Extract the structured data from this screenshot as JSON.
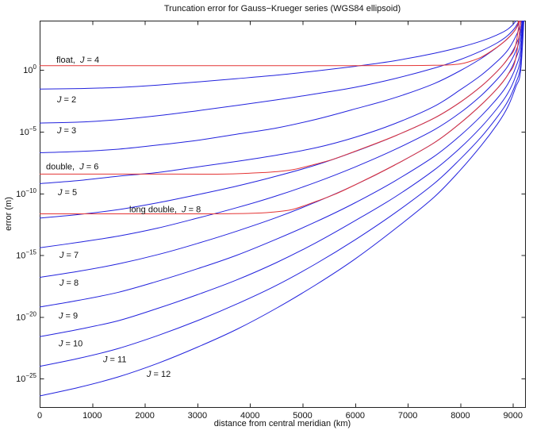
{
  "title": "Truncation error for Gauss−Krueger series (WGS84 ellipsoid)",
  "xlabel": "distance from central meridian (km)",
  "ylabel": "error (m)",
  "colors": {
    "blue_series": "#2222dd",
    "red_series": "#e43535",
    "axis": "#222222",
    "text": "#111111",
    "background": "#ffffff"
  },
  "axis": {
    "xmin": 0,
    "xmax": 9230,
    "x_ticks": [
      0,
      1000,
      2000,
      3000,
      4000,
      5000,
      6000,
      7000,
      8000,
      9000
    ],
    "y_tick_exponents": [
      0,
      -5,
      -10,
      -15,
      -20,
      -25
    ],
    "log_ymin": -27.3,
    "log_ymax": 4.0,
    "grid": false,
    "legend": false
  },
  "chart_data": {
    "type": "line",
    "x_km": [
      0,
      750,
      1500,
      2250,
      3000,
      3750,
      4500,
      5250,
      6000,
      6750,
      7500,
      8000,
      8400,
      8700,
      8900,
      9050,
      9150,
      9230
    ],
    "series": [
      {
        "name": "J = 2",
        "color": "blue",
        "log10_error": [
          -1.54,
          -1.5,
          -1.41,
          -1.22,
          -0.97,
          -0.7,
          -0.42,
          -0.08,
          0.3,
          0.75,
          1.35,
          1.85,
          2.35,
          2.85,
          3.3,
          3.95,
          4.8,
          6.0
        ]
      },
      {
        "name": "J = 3",
        "color": "blue",
        "log10_error": [
          -4.3,
          -4.22,
          -4.02,
          -3.7,
          -3.3,
          -2.87,
          -2.42,
          -1.93,
          -1.4,
          -0.7,
          0.15,
          0.85,
          1.55,
          2.2,
          2.8,
          3.5,
          4.4,
          6.0
        ]
      },
      {
        "name": "J = 4",
        "color": "blue",
        "log10_error": [
          -6.7,
          -6.6,
          -6.41,
          -6.08,
          -5.7,
          -5.2,
          -4.7,
          -4.0,
          -3.15,
          -2.25,
          -1.1,
          -0.05,
          0.95,
          1.85,
          2.55,
          3.3,
          4.2,
          6.0
        ]
      },
      {
        "name": "J = 5",
        "color": "blue",
        "log10_error": [
          -9.2,
          -8.95,
          -8.6,
          -8.3,
          -7.85,
          -7.4,
          -6.9,
          -6.3,
          -5.45,
          -4.35,
          -2.95,
          -1.6,
          -0.4,
          0.7,
          1.6,
          2.7,
          3.8,
          6.0
        ]
      },
      {
        "name": "J = 6",
        "color": "blue",
        "log10_error": [
          -12.0,
          -11.7,
          -11.3,
          -10.75,
          -10.1,
          -9.4,
          -8.6,
          -7.7,
          -6.6,
          -5.35,
          -3.9,
          -2.6,
          -1.3,
          -0.1,
          0.9,
          2.0,
          3.3,
          6.0
        ]
      },
      {
        "name": "J = 7",
        "color": "blue",
        "log10_error": [
          -14.4,
          -13.95,
          -13.45,
          -12.8,
          -12.0,
          -11.15,
          -10.2,
          -9.1,
          -7.85,
          -6.45,
          -4.85,
          -3.45,
          -2.05,
          -0.75,
          0.3,
          1.5,
          2.9,
          6.0
        ]
      },
      {
        "name": "J = 8",
        "color": "blue",
        "log10_error": [
          -16.8,
          -16.3,
          -15.7,
          -14.95,
          -14.05,
          -13.05,
          -11.95,
          -10.7,
          -9.3,
          -7.7,
          -5.9,
          -4.3,
          -2.8,
          -1.5,
          -0.4,
          0.9,
          2.4,
          6.0
        ]
      },
      {
        "name": "J = 9",
        "color": "blue",
        "log10_error": [
          -19.2,
          -18.65,
          -18.0,
          -17.1,
          -16.1,
          -15.0,
          -13.7,
          -12.3,
          -10.75,
          -9.0,
          -7.0,
          -5.3,
          -3.7,
          -2.3,
          -1.15,
          0.2,
          1.8,
          6.0
        ]
      },
      {
        "name": "J = 10",
        "color": "blue",
        "log10_error": [
          -21.6,
          -21.0,
          -20.3,
          -19.3,
          -18.2,
          -17.0,
          -15.6,
          -14.0,
          -12.2,
          -10.3,
          -8.1,
          -6.3,
          -4.6,
          -3.1,
          -1.9,
          -0.5,
          1.2,
          6.0
        ]
      },
      {
        "name": "J = 11",
        "color": "blue",
        "log10_error": [
          -24.0,
          -23.35,
          -22.55,
          -21.5,
          -20.3,
          -18.95,
          -17.45,
          -15.7,
          -13.75,
          -11.6,
          -9.2,
          -7.2,
          -5.4,
          -3.8,
          -2.55,
          -1.1,
          0.6,
          6.0
        ]
      },
      {
        "name": "J = 12",
        "color": "blue",
        "log10_error": [
          -26.4,
          -25.7,
          -24.85,
          -23.75,
          -22.45,
          -21.0,
          -19.3,
          -17.4,
          -15.3,
          -12.9,
          -10.3,
          -8.1,
          -6.1,
          -4.4,
          -3.0,
          -1.4,
          0.1,
          6.0
        ]
      },
      {
        "name": "float, J = 4",
        "color": "red",
        "x_km": [
          0,
          6000,
          7000,
          7500,
          7800,
          8000,
          8150,
          8400,
          8700,
          8900,
          9050,
          9110,
          9160
        ],
        "log10_error": [
          0.35,
          0.35,
          0.36,
          0.38,
          0.42,
          0.5,
          0.65,
          1.05,
          1.86,
          2.56,
          3.3,
          3.97,
          5.0
        ]
      },
      {
        "name": "double, J = 6",
        "color": "red",
        "x_km": [
          0,
          2500,
          3500,
          4000,
          4400,
          4800,
          5200,
          5600,
          6000,
          6750,
          7500,
          8000,
          8400,
          8700,
          8900,
          9050,
          9150
        ],
        "log10_error": [
          -8.43,
          -8.43,
          -8.43,
          -8.35,
          -8.27,
          -8.08,
          -7.68,
          -7.2,
          -6.58,
          -5.35,
          -3.9,
          -2.6,
          -1.3,
          -0.1,
          0.9,
          2.0,
          5.0
        ]
      },
      {
        "name": "long double, J = 8",
        "color": "red",
        "x_km": [
          0,
          3000,
          4000,
          4400,
          4800,
          5200,
          5600,
          6000,
          6750,
          7500,
          8000,
          8400,
          8700,
          8900,
          9050,
          9180
        ],
        "log10_error": [
          -11.65,
          -11.65,
          -11.61,
          -11.52,
          -11.3,
          -10.73,
          -10.09,
          -9.3,
          -7.7,
          -5.9,
          -4.3,
          -2.8,
          -1.5,
          -0.4,
          0.9,
          5.0
        ]
      }
    ]
  },
  "curve_labels": [
    {
      "pre": "float,  ",
      "j": "J",
      "post": " = 4",
      "km": 317,
      "logv": 0.6
    },
    {
      "pre": "",
      "j": "J",
      "post": " = 2",
      "km": 332,
      "logv": -2.62
    },
    {
      "pre": "",
      "j": "J",
      "post": " = 3",
      "km": 332,
      "logv": -5.13
    },
    {
      "pre": "double,  ",
      "j": "J",
      "post": " = 6",
      "km": 121,
      "logv": -8.05
    },
    {
      "pre": "",
      "j": "J",
      "post": " = 5",
      "km": 347,
      "logv": -10.14
    },
    {
      "pre": "long double,  ",
      "j": "J",
      "post": " = 8",
      "km": 1704,
      "logv": -11.52
    },
    {
      "pre": "",
      "j": "J",
      "post": " = 7",
      "km": 377,
      "logv": -15.22
    },
    {
      "pre": "",
      "j": "J",
      "post": " = 8",
      "km": 377,
      "logv": -17.47
    },
    {
      "pre": "",
      "j": "J",
      "post": " = 9",
      "km": 362,
      "logv": -20.13
    },
    {
      "pre": "",
      "j": "J",
      "post": " = 10",
      "km": 362,
      "logv": -22.38
    },
    {
      "pre": "",
      "j": "J",
      "post": " = 11",
      "km": 1207,
      "logv": -23.67
    },
    {
      "pre": "",
      "j": "J",
      "post": " = 12",
      "km": 2036,
      "logv": -24.86
    }
  ]
}
